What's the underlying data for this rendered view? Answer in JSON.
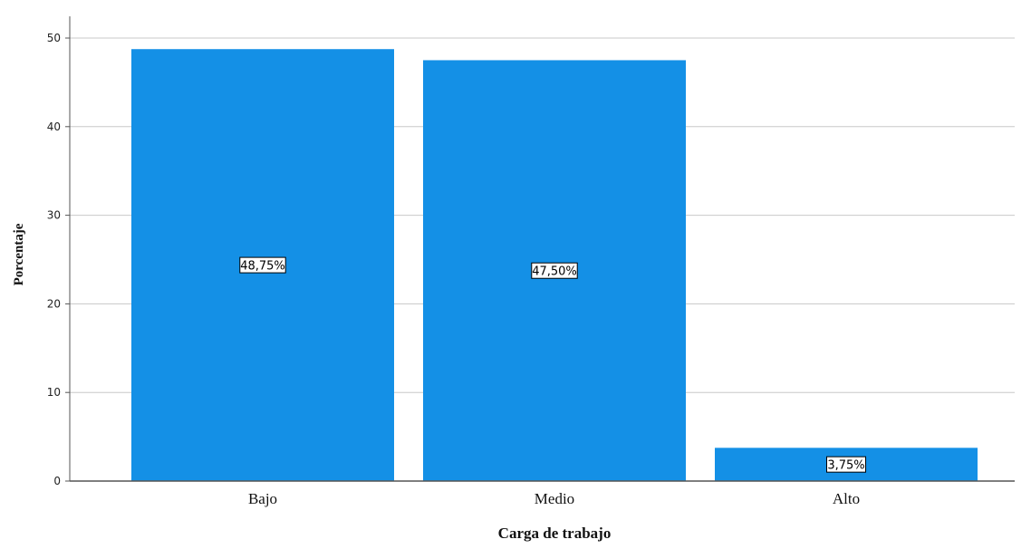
{
  "chart_data": {
    "type": "bar",
    "categories": [
      "Bajo",
      "Medio",
      "Alto"
    ],
    "values": [
      48.75,
      47.5,
      3.75
    ],
    "data_labels": [
      "48,75%",
      "47,50%",
      "3,75%"
    ],
    "xlabel": "Carga de trabajo",
    "ylabel": "Porcentaje",
    "ylim": [
      0,
      52.5
    ],
    "yticks": [
      0,
      10,
      20,
      30,
      40,
      50
    ],
    "grid": true,
    "bar_color": "#1490E6",
    "grid_color": "#C8C8C8",
    "axis_color": "#555555"
  }
}
